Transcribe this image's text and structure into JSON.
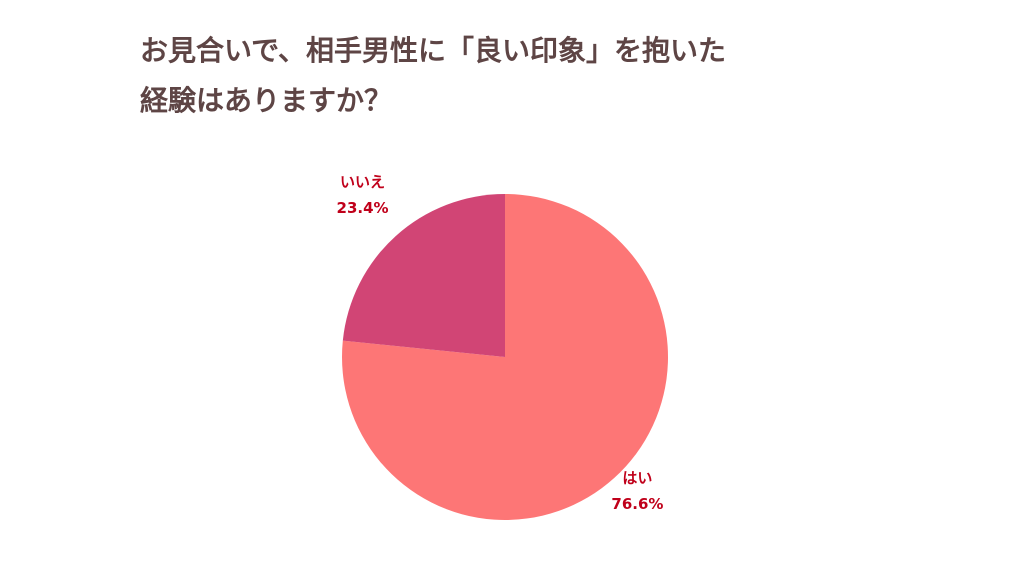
{
  "chart_data": {
    "type": "pie",
    "title": [
      "お見合いで、相手男性に「良い印象」を抱いた",
      "経験はありますか？"
    ],
    "categories": [
      "はい",
      "いいえ"
    ],
    "values": [
      76.6,
      23.4
    ],
    "value_labels": [
      "76.6%",
      "23.4%"
    ],
    "colors": [
      "#fd7676",
      "#d14575"
    ]
  }
}
